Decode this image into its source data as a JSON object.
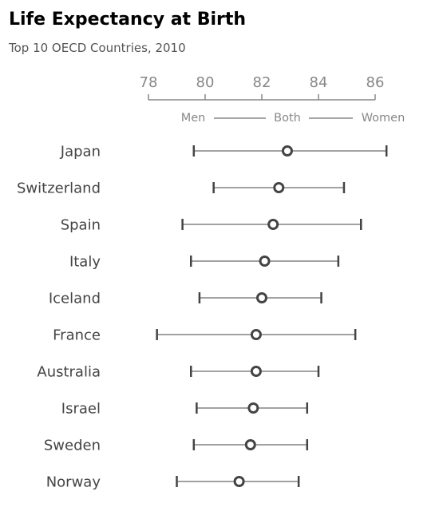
{
  "chart_data": {
    "type": "dot-range",
    "title": "Life Expectancy at Birth",
    "subtitle": "Top 10 OECD Countries, 2010",
    "xlim": [
      78,
      86
    ],
    "xticks": [
      78,
      80,
      82,
      84,
      86
    ],
    "legend": {
      "men": "Men",
      "both": "Both",
      "women": "Women",
      "placement": "top"
    },
    "colors": {
      "line": "#444444",
      "axis": "#888888",
      "marker_fill": "#ffffff"
    },
    "countries": [
      {
        "name": "Japan",
        "men": 79.6,
        "both": 82.9,
        "women": 86.4
      },
      {
        "name": "Switzerland",
        "men": 80.3,
        "both": 82.6,
        "women": 84.9
      },
      {
        "name": "Spain",
        "men": 79.2,
        "both": 82.4,
        "women": 85.5
      },
      {
        "name": "Italy",
        "men": 79.5,
        "both": 82.1,
        "women": 84.7
      },
      {
        "name": "Iceland",
        "men": 79.8,
        "both": 82.0,
        "women": 84.1
      },
      {
        "name": "France",
        "men": 78.3,
        "both": 81.8,
        "women": 85.3
      },
      {
        "name": "Australia",
        "men": 79.5,
        "both": 81.8,
        "women": 84.0
      },
      {
        "name": "Israel",
        "men": 79.7,
        "both": 81.7,
        "women": 83.6
      },
      {
        "name": "Sweden",
        "men": 79.6,
        "both": 81.6,
        "women": 83.6
      },
      {
        "name": "Norway",
        "men": 79.0,
        "both": 81.2,
        "women": 83.3
      }
    ]
  }
}
